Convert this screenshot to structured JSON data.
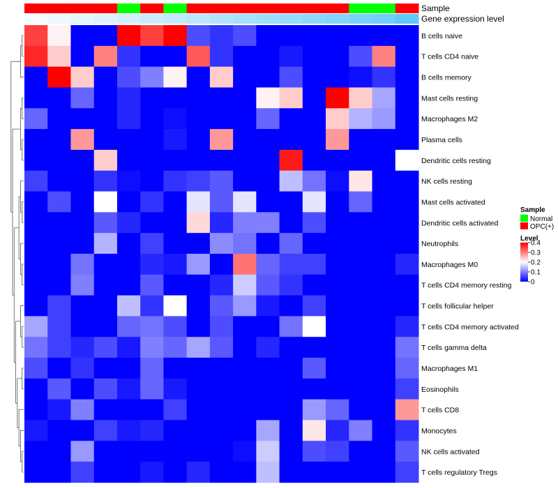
{
  "chart_data": {
    "type": "heatmap",
    "annotation_titles": [
      "Sample",
      "Gene expression level"
    ],
    "sample_groups": [
      "OPC",
      "OPC",
      "OPC",
      "OPC",
      "Normal",
      "OPC",
      "Normal",
      "OPC",
      "OPC",
      "OPC",
      "OPC",
      "OPC",
      "OPC",
      "OPC",
      "Normal",
      "Normal",
      "OPC"
    ],
    "expression_levels": [
      0.05,
      0.1,
      0.15,
      0.2,
      0.25,
      0.3,
      0.35,
      0.4,
      0.45,
      0.5,
      0.55,
      0.6,
      0.65,
      0.7,
      0.75,
      0.8,
      0.9
    ],
    "rows": [
      "B cells naive",
      "T cells CD4 naive",
      "B cells memory",
      "Mast cells resting",
      "Macrophages M2",
      "Plasma cells",
      "Dendritic cells resting",
      "NK cells resting",
      "Mast cells activated",
      "Dendritic cells activated",
      "Neutrophils",
      "Macrophages M0",
      "T cells CD4 memory resting",
      "T cells follicular helper",
      "T cells CD4 memory activated",
      "T cells gamma delta",
      "Macrophages M1",
      "Eosinophils",
      "T cells CD8",
      "Monocytes",
      "NK cells activated",
      "T cells regulatory  Tregs"
    ],
    "values": [
      [
        0.35,
        0.21,
        0,
        0,
        0.4,
        0.35,
        0.4,
        0.06,
        0.04,
        0.06,
        0,
        0,
        0,
        0,
        0,
        0,
        0
      ],
      [
        0.37,
        0.24,
        0,
        0.3,
        0.04,
        0,
        0,
        0.33,
        0.04,
        0,
        0,
        0.02,
        0,
        0,
        0.06,
        0.3,
        0
      ],
      [
        0,
        0.4,
        0.24,
        0,
        0.06,
        0.1,
        0.21,
        0,
        0.24,
        0,
        0,
        0.06,
        0,
        0,
        0.01,
        0.04,
        0
      ],
      [
        0,
        0,
        0.08,
        0,
        0.03,
        0,
        0,
        0,
        0,
        0,
        0.21,
        0.24,
        0,
        0.4,
        0.24,
        0.13,
        0
      ],
      [
        0.08,
        0,
        0,
        0,
        0.03,
        0,
        0.01,
        0,
        0,
        0,
        0.08,
        0,
        0,
        0.24,
        0.14,
        0.12,
        0
      ],
      [
        0,
        0,
        0.28,
        0,
        0,
        0,
        0.02,
        0,
        0.28,
        0,
        0,
        0,
        0,
        0.28,
        0,
        0,
        0
      ],
      [
        0,
        0,
        0,
        0.24,
        0,
        0,
        0,
        0,
        0,
        0,
        0,
        0.38,
        0,
        0,
        0,
        0,
        0.2
      ],
      [
        0.05,
        0,
        0,
        0.04,
        0.01,
        0,
        0.04,
        0.05,
        0.07,
        0,
        0,
        0.15,
        0.09,
        0.01,
        0.22,
        0,
        0
      ],
      [
        0,
        0.06,
        0,
        0.2,
        0,
        0.04,
        0,
        0.18,
        0.07,
        0.18,
        0,
        0,
        0.18,
        0,
        0.08,
        0,
        0
      ],
      [
        0,
        0,
        0,
        0.07,
        0.03,
        0,
        0,
        0.23,
        0.03,
        0.1,
        0.1,
        0,
        0.06,
        0,
        0,
        0,
        0
      ],
      [
        0,
        0,
        0,
        0.14,
        0,
        0.05,
        0,
        0,
        0.11,
        0.09,
        0,
        0.08,
        0,
        0,
        0,
        0,
        0
      ],
      [
        0,
        0,
        0.09,
        0,
        0,
        0.03,
        0.02,
        0.12,
        0,
        0.31,
        0.08,
        0.05,
        0.05,
        0,
        0,
        0,
        0.03
      ],
      [
        0,
        0,
        0.1,
        0,
        0,
        0.07,
        0,
        0,
        0.03,
        0.16,
        0.07,
        0.04,
        0,
        0,
        0,
        0,
        0
      ],
      [
        0,
        0.05,
        0,
        0,
        0.15,
        0.04,
        0.2,
        0,
        0.07,
        0.12,
        0.02,
        0,
        0.05,
        0,
        0,
        0,
        0
      ],
      [
        0.13,
        0.05,
        0,
        0,
        0.08,
        0.09,
        0.06,
        0,
        0.06,
        0,
        0,
        0.09,
        0.2,
        0,
        0,
        0,
        0.03
      ],
      [
        0.09,
        0.05,
        0.03,
        0.06,
        0.02,
        0.1,
        0.08,
        0.13,
        0.07,
        0,
        0.03,
        0,
        0,
        0,
        0,
        0,
        0.09
      ],
      [
        0.06,
        0,
        0.04,
        0,
        0,
        0.08,
        0,
        0,
        0,
        0,
        0,
        0,
        0.07,
        0,
        0,
        0,
        0.08
      ],
      [
        0,
        0.07,
        0,
        0.06,
        0.02,
        0.08,
        0.02,
        0,
        0,
        0,
        0,
        0,
        0,
        0,
        0,
        0,
        0.05
      ],
      [
        0,
        0.02,
        0.1,
        0,
        0,
        0,
        0.05,
        0,
        0,
        0,
        0,
        0,
        0.12,
        0.08,
        0,
        0,
        0.28
      ],
      [
        0.02,
        0,
        0,
        0.05,
        0.02,
        0.03,
        0,
        0,
        0,
        0,
        0.13,
        0,
        0.22,
        0.03,
        0.1,
        0,
        0.04
      ],
      [
        0,
        0,
        0.12,
        0,
        0,
        0,
        0,
        0,
        0,
        0.01,
        0.16,
        0,
        0.06,
        0.05,
        0,
        0,
        0.07
      ],
      [
        0,
        0,
        0.05,
        0,
        0,
        0.02,
        0,
        0.03,
        0,
        0,
        0.15,
        0,
        0,
        0,
        0,
        0,
        0.05
      ]
    ],
    "legend_sample": {
      "title": "Sample",
      "items": [
        {
          "label": "Normal",
          "color": "#00ff00"
        },
        {
          "label": "OPC(+)",
          "color": "#ff0000"
        }
      ]
    },
    "legend_level": {
      "title": "Level",
      "ticks": [
        "0.4",
        "0.3",
        "0.2",
        "0.1",
        "0"
      ],
      "range": [
        0,
        0.4
      ]
    },
    "colors": {
      "low": "#0000ff",
      "mid": "#ffffff",
      "high": "#ff0000",
      "normal": "#00ff00",
      "opc": "#ff0000",
      "expr_low": "#ffffff",
      "expr_high": "#4fc3f7"
    }
  }
}
